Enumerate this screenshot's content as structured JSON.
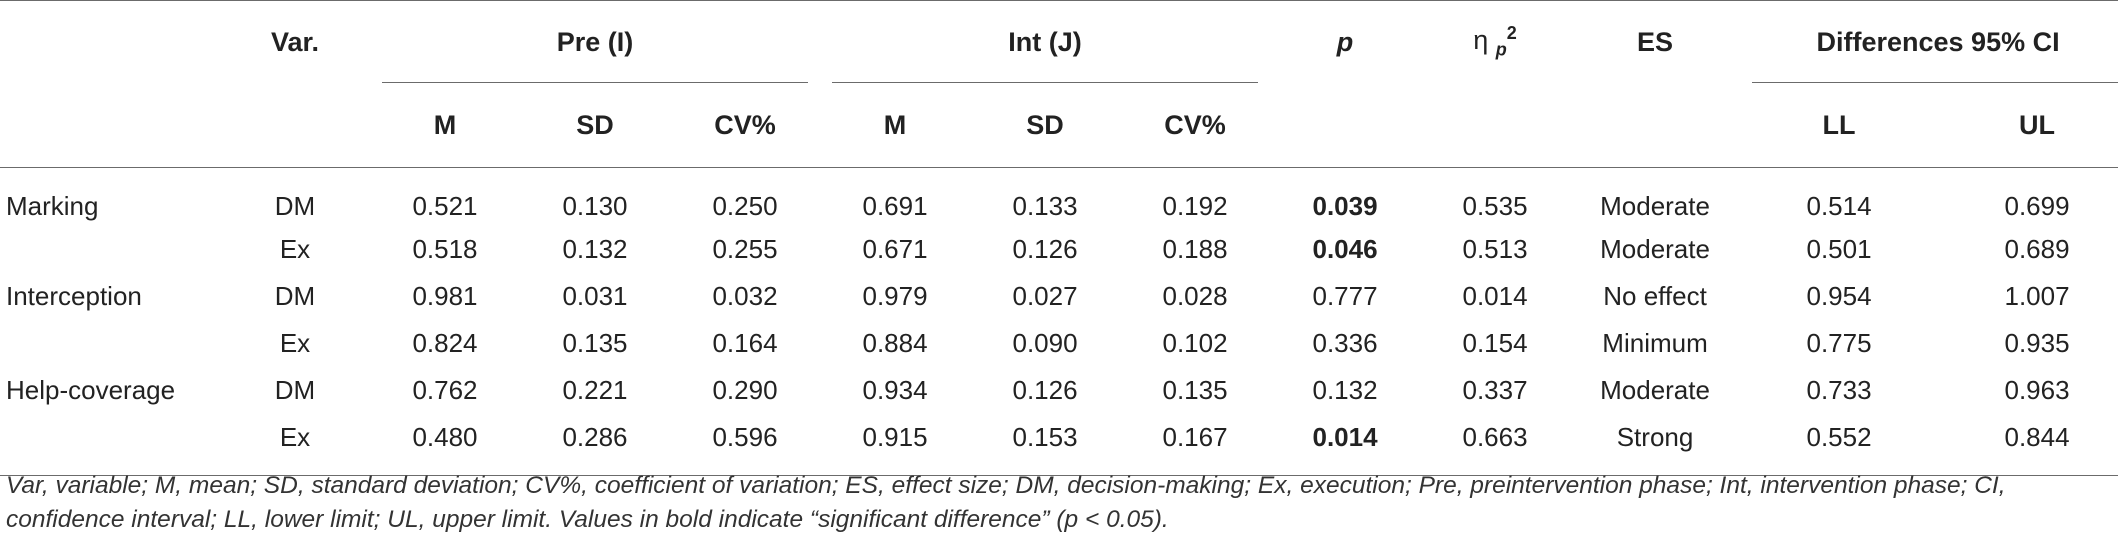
{
  "header": {
    "var": "Var.",
    "pre": "Pre (I)",
    "int": "Int (J)",
    "p": "p",
    "eta_symbol": "η",
    "eta_sub": "p",
    "eta_sup": "2",
    "es": "ES",
    "ci": "Differences 95% CI",
    "sub": {
      "m": "M",
      "sd": "SD",
      "cv": "CV%",
      "ll": "LL",
      "ul": "UL"
    }
  },
  "rows": [
    {
      "label": "Marking",
      "var": "DM",
      "pre_m": "0.521",
      "pre_sd": "0.130",
      "pre_cv": "0.250",
      "int_m": "0.691",
      "int_sd": "0.133",
      "int_cv": "0.192",
      "p": "0.039",
      "eta": "0.535",
      "es": "Moderate",
      "ll": "0.514",
      "ul": "0.699"
    },
    {
      "label": "",
      "var": "Ex",
      "pre_m": "0.518",
      "pre_sd": "0.132",
      "pre_cv": "0.255",
      "int_m": "0.671",
      "int_sd": "0.126",
      "int_cv": "0.188",
      "p": "0.046",
      "eta": "0.513",
      "es": "Moderate",
      "ll": "0.501",
      "ul": "0.689"
    },
    {
      "label": "Interception",
      "var": "DM",
      "pre_m": "0.981",
      "pre_sd": "0.031",
      "pre_cv": "0.032",
      "int_m": "0.979",
      "int_sd": "0.027",
      "int_cv": "0.028",
      "p": "0.777",
      "eta": "0.014",
      "es": "No effect",
      "ll": "0.954",
      "ul": "1.007"
    },
    {
      "label": "",
      "var": "Ex",
      "pre_m": "0.824",
      "pre_sd": "0.135",
      "pre_cv": "0.164",
      "int_m": "0.884",
      "int_sd": "0.090",
      "int_cv": "0.102",
      "p": "0.336",
      "eta": "0.154",
      "es": "Minimum",
      "ll": "0.775",
      "ul": "0.935"
    },
    {
      "label": "Help-coverage",
      "var": "DM",
      "pre_m": "0.762",
      "pre_sd": "0.221",
      "pre_cv": "0.290",
      "int_m": "0.934",
      "int_sd": "0.126",
      "int_cv": "0.135",
      "p": "0.132",
      "eta": "0.337",
      "es": "Moderate",
      "ll": "0.733",
      "ul": "0.963"
    },
    {
      "label": "",
      "var": "Ex",
      "pre_m": "0.480",
      "pre_sd": "0.286",
      "pre_cv": "0.596",
      "int_m": "0.915",
      "int_sd": "0.153",
      "int_cv": "0.167",
      "p": "0.014",
      "eta": "0.663",
      "es": "Strong",
      "ll": "0.552",
      "ul": "0.844"
    }
  ],
  "footnote": "Var, variable; M, mean; SD, standard deviation; CV%, coefficient of variation; ES, effect size; DM, decision-making; Ex, execution; Pre, preintervention phase; Int, intervention phase; CI, confidence interval; LL, lower limit; UL, upper limit. Values in bold indicate “significant difference” (p < 0.05)."
}
